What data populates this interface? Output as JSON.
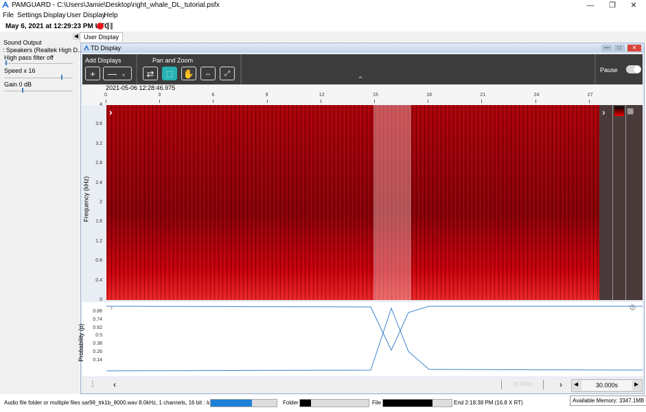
{
  "window": {
    "app_name": "PAMGUARD",
    "path": "C:\\Users\\Jamie\\Desktop\\right_whale_DL_tutorial.psfx"
  },
  "menu": [
    "File",
    "Settings",
    "Display",
    "User Display",
    "Help"
  ],
  "datetime": "May 6, 2021 at 12:29:23 PM UTC",
  "sidebar": {
    "sound_output": "Sound Output",
    "device": ": Speakers (Realtek High D...",
    "filter": "High pass filter off",
    "speed": "Speed  x 16",
    "gain": "Gain 0 dB"
  },
  "tab": "User Display",
  "td": {
    "title": "TD Display",
    "add_displays": "Add Displays",
    "pan_zoom": "Pan and Zoom",
    "pause": "Pause",
    "timestamp": "2021-05-06 12:28:46.975",
    "x_ticks": [
      "0",
      "3",
      "6",
      "9",
      "12",
      "15",
      "18",
      "21",
      "24",
      "27"
    ],
    "y_label": "Frequency (kHz)",
    "y_ticks": [
      "4",
      "3.6",
      "3.2",
      "2.8",
      "2.4",
      "2",
      "1.6",
      "1.2",
      "0.8",
      "0.4",
      "0"
    ],
    "prob_label": "Probability (p)",
    "prob_ticks": [
      "0.86",
      "0.74",
      "0.62",
      "0.5",
      "0.38",
      "0.26",
      "0.14"
    ],
    "window_value": "30.000s",
    "window_faint": "30.000s"
  },
  "footer": {
    "status": "Audio file folder or multiple files sar98_trk1b_8000.wav 8.0kHz, 1 channels, 16 bit : Idle",
    "folder": "Folder",
    "file": "File",
    "end": "End 2:18:38 PM (16.8 X RT)",
    "memory": "Available Memory: 3347.1MB"
  },
  "colors": {
    "accent": "#1e7fd6",
    "spectrogram": "#c4000a",
    "pan_active": "#26b3b3",
    "record": "#e8141b"
  }
}
